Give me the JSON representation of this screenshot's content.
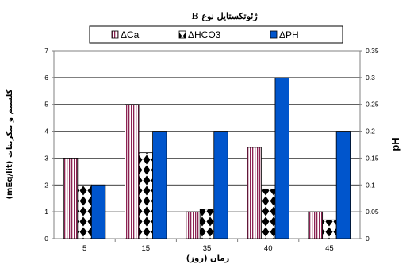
{
  "chart_data": {
    "type": "bar",
    "title": "ژئوتکستایل نوع B",
    "categories": [
      "5",
      "15",
      "35",
      "40",
      "45"
    ],
    "xlabel": "زمان (روز)",
    "ylabel_left": "کلسیم و بیکربنات (mEq/lit)",
    "ylabel_right": "pH",
    "ylim_left": [
      0,
      7
    ],
    "ylim_right": [
      0,
      0.35
    ],
    "yticks_left": [
      "0",
      "1",
      "2",
      "3",
      "4",
      "5",
      "6",
      "7"
    ],
    "yticks_right": [
      "0",
      "0.05",
      "0.1",
      "0.15",
      "0.2",
      "0.25",
      "0.3",
      "0.35"
    ],
    "grid": "horizontal",
    "legend_position": "top",
    "series": [
      {
        "name": "ΔCa",
        "axis": "left",
        "values": [
          3,
          5,
          1,
          3.4,
          1
        ],
        "pattern": "vertical-stripes",
        "color": "#8B2252"
      },
      {
        "name": "ΔHCO3",
        "axis": "left",
        "values": [
          2,
          3.2,
          1.1,
          1.85,
          0.7
        ],
        "pattern": "diamonds",
        "color": "#000000"
      },
      {
        "name": "ΔPH",
        "axis": "right",
        "values": [
          0.1,
          0.2,
          0.2,
          0.3,
          0.2
        ],
        "pattern": "solid",
        "color": "#0055CC"
      }
    ]
  }
}
